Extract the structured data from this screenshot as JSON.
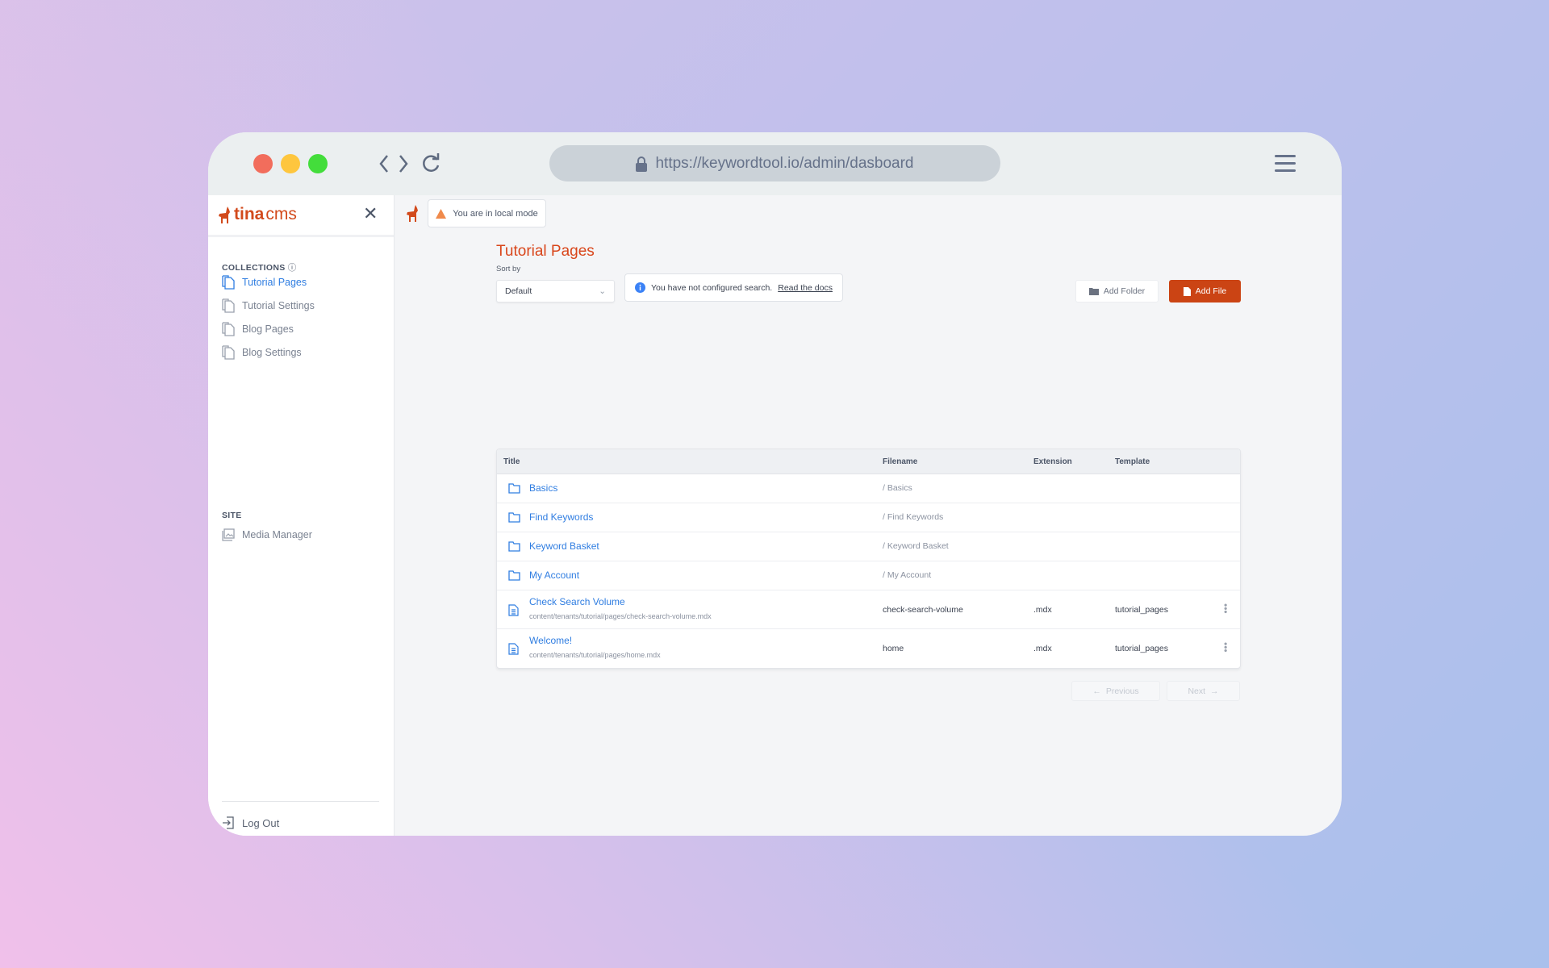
{
  "browser": {
    "url": "https://keywordtool.io/admin/dasboard",
    "colors": {
      "close": "#f26d5c",
      "minimize": "#fec63e",
      "maximize": "#43dd3b"
    }
  },
  "sidebar": {
    "logo": {
      "brand": "tina",
      "suffix": "cms"
    },
    "collections_label": "COLLECTIONS",
    "collections": [
      {
        "label": "Tutorial Pages",
        "active": true
      },
      {
        "label": "Tutorial Settings"
      },
      {
        "label": "Blog Pages"
      },
      {
        "label": "Blog Settings"
      }
    ],
    "site_label": "SITE",
    "site_items": [
      {
        "label": "Media Manager"
      }
    ],
    "logout": "Log Out"
  },
  "main": {
    "local_mode": "You are in local mode",
    "title": "Tutorial Pages",
    "sort_label": "Sort by",
    "sort_value": "Default",
    "search_notice": "You have not configured search.",
    "search_link": "Read the docs",
    "add_folder": "Add Folder",
    "add_file": "Add File",
    "table": {
      "headers": [
        "Title",
        "Filename",
        "Extension",
        "Template"
      ],
      "folders": [
        {
          "name": "Basics",
          "filename": "/ Basics"
        },
        {
          "name": "Find Keywords",
          "filename": "/ Find Keywords"
        },
        {
          "name": "Keyword Basket",
          "filename": "/ Keyword Basket"
        },
        {
          "name": "My Account",
          "filename": "/ My Account"
        }
      ],
      "files": [
        {
          "name": "Check Search Volume",
          "path": "content/tenants/tutorial/pages/check-search-volume.mdx",
          "filename": "check-search-volume",
          "extension": ".mdx",
          "template": "tutorial_pages"
        },
        {
          "name": "Welcome!",
          "path": "content/tenants/tutorial/pages/home.mdx",
          "filename": "home",
          "extension": ".mdx",
          "template": "tutorial_pages"
        }
      ]
    },
    "pagination": {
      "previous": "Previous",
      "next": "Next"
    }
  },
  "accent": "#cb4414",
  "link": "#2f7de1"
}
